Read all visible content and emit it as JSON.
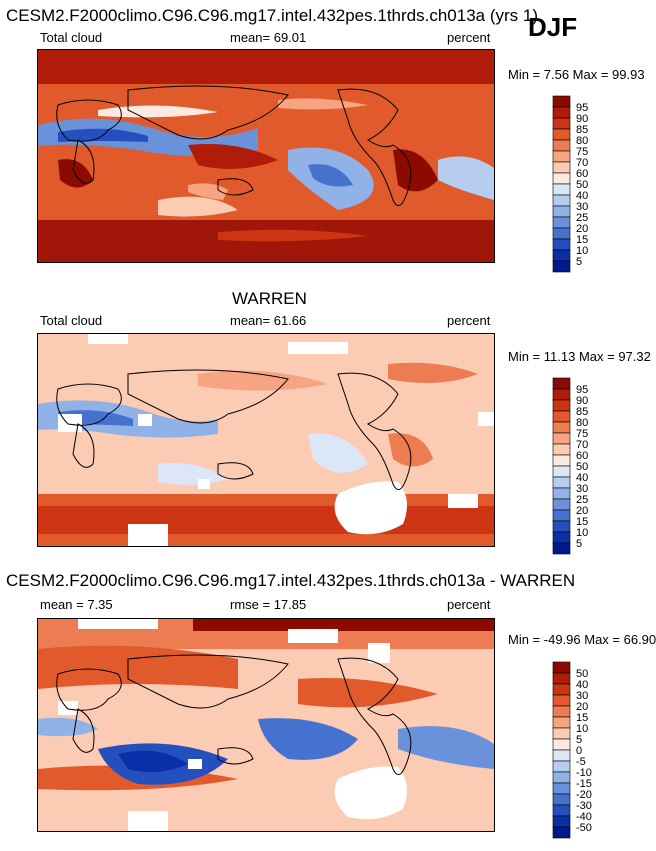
{
  "season": "DJF",
  "panels": [
    {
      "title": "CESM2.F2000climo.C96.C96.mg17.intel.432pes.1thrds.ch013a (yrs 1)",
      "variable": "Total cloud",
      "mean": "mean= 69.01",
      "units": "percent",
      "minmax": "Min =  7.56 Max =  99.93"
    },
    {
      "title": "WARREN",
      "variable": "Total cloud",
      "mean": "mean= 61.66",
      "units": "percent",
      "minmax": "Min =  11.13 Max =  97.32"
    },
    {
      "title": "CESM2.F2000climo.C96.C96.mg17.intel.432pes.1thrds.ch013a - WARREN",
      "variable": "mean =  7.35",
      "mean": "rmse =  17.85",
      "units": "percent",
      "minmax": "Min = -49.96 Max =  66.90"
    }
  ],
  "chart_data": [
    {
      "type": "heatmap",
      "title": "CESM2.F2000climo.C96.C96.mg17.intel.432pes.1thrds.ch013a (yrs 1)",
      "variable": "Total cloud",
      "units": "percent",
      "mean": 69.01,
      "min": 7.56,
      "max": 99.93,
      "colorbar": {
        "labels": [
          "95",
          "90",
          "85",
          "80",
          "75",
          "70",
          "60",
          "50",
          "40",
          "30",
          "25",
          "20",
          "15",
          "10",
          "5"
        ],
        "colors": [
          "#8c0a00",
          "#b01c08",
          "#cc3414",
          "#e05a2c",
          "#ee7c52",
          "#f7a483",
          "#fbcbb4",
          "#fce9df",
          "#dbe6f6",
          "#b7cdef",
          "#91b2e6",
          "#6a92da",
          "#4572ce",
          "#2450bf",
          "#0a2fa8",
          "#001a8a"
        ]
      }
    },
    {
      "type": "heatmap",
      "title": "WARREN",
      "variable": "Total cloud",
      "units": "percent",
      "mean": 61.66,
      "min": 11.13,
      "max": 97.32,
      "colorbar": {
        "labels": [
          "95",
          "90",
          "85",
          "80",
          "75",
          "70",
          "60",
          "50",
          "40",
          "30",
          "25",
          "20",
          "15",
          "10",
          "5"
        ],
        "colors": [
          "#8c0a00",
          "#b01c08",
          "#cc3414",
          "#e05a2c",
          "#ee7c52",
          "#f7a483",
          "#fbcbb4",
          "#fce9df",
          "#dbe6f6",
          "#b7cdef",
          "#91b2e6",
          "#6a92da",
          "#4572ce",
          "#2450bf",
          "#0a2fa8",
          "#001a8a"
        ]
      }
    },
    {
      "type": "heatmap",
      "title": "CESM2.F2000climo.C96.C96.mg17.intel.432pes.1thrds.ch013a - WARREN",
      "units": "percent",
      "mean": 7.35,
      "rmse": 17.85,
      "min": -49.96,
      "max": 66.9,
      "colorbar": {
        "labels": [
          "50",
          "40",
          "30",
          "20",
          "15",
          "10",
          "5",
          "0",
          "-5",
          "-10",
          "-15",
          "-20",
          "-30",
          "-40",
          "-50"
        ],
        "colors": [
          "#8c0a00",
          "#b01c08",
          "#cc3414",
          "#e05a2c",
          "#ee7c52",
          "#f7a483",
          "#fbcbb4",
          "#fce9df",
          "#dbe6f6",
          "#b7cdef",
          "#91b2e6",
          "#6a92da",
          "#4572ce",
          "#2450bf",
          "#0a2fa8",
          "#001a8a"
        ]
      }
    }
  ]
}
